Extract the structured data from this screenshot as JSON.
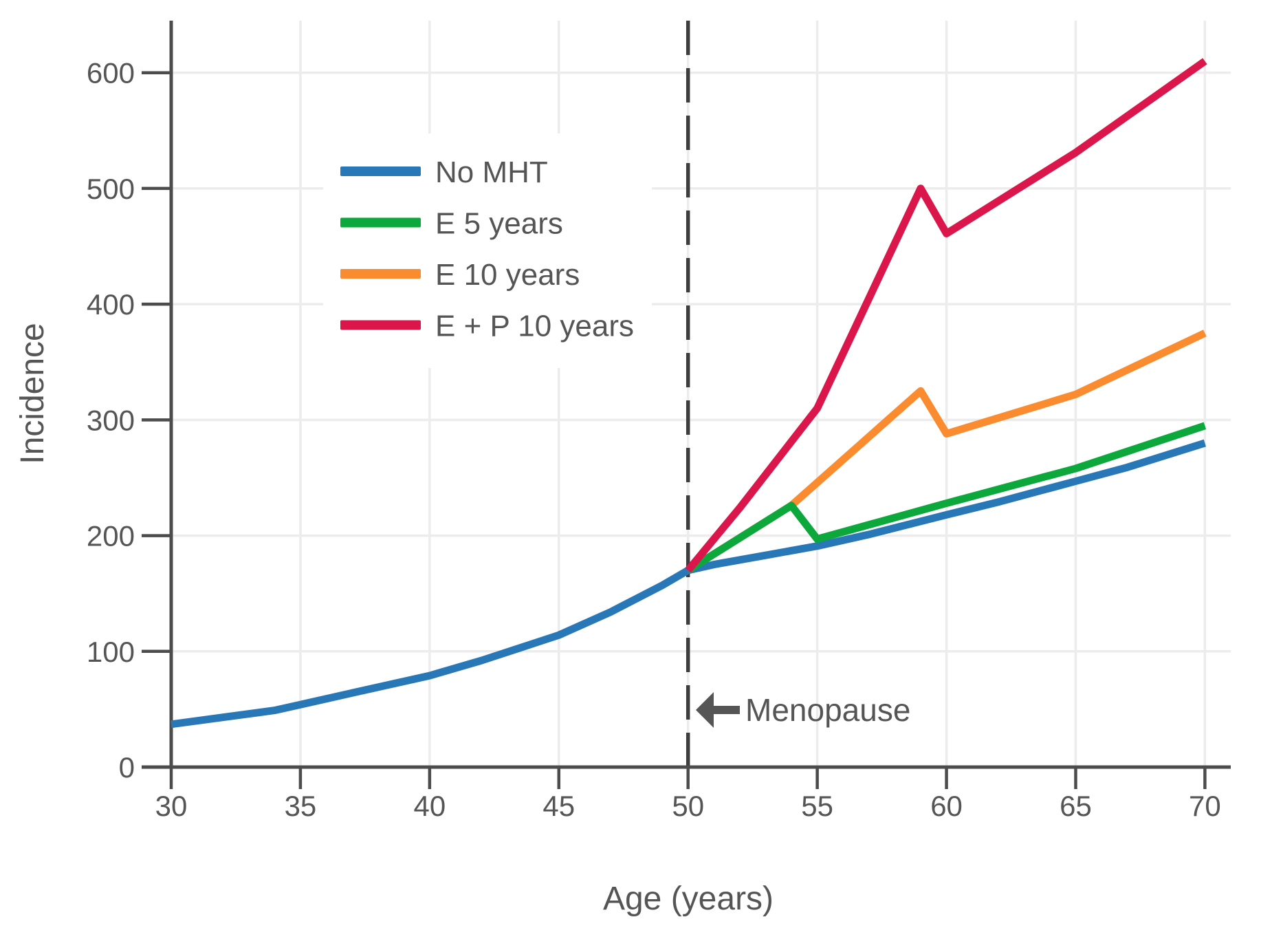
{
  "chart_data": {
    "type": "line",
    "title": "",
    "xlabel": "Age (years)",
    "ylabel": "Incidence",
    "xlim": [
      30,
      71
    ],
    "ylim": [
      0,
      645
    ],
    "x_ticks": [
      30,
      35,
      40,
      45,
      50,
      55,
      60,
      65,
      70
    ],
    "y_ticks": [
      0,
      100,
      200,
      300,
      400,
      500,
      600
    ],
    "grid": true,
    "legend_position": "upper left inside",
    "series": [
      {
        "name": "No MHT",
        "color": "#2878B8",
        "x": [
          30,
          32,
          34,
          35,
          37,
          40,
          42,
          45,
          47,
          49,
          50,
          51,
          53,
          55,
          57,
          60,
          62,
          65,
          67,
          70
        ],
        "y": [
          37,
          43,
          49,
          54,
          64,
          79,
          92,
          114,
          134,
          157,
          170,
          175,
          183,
          191,
          201,
          218,
          229,
          247,
          259,
          280
        ]
      },
      {
        "name": "E 5 years",
        "color": "#0CA83C",
        "x": [
          50,
          54,
          55,
          60,
          65,
          70
        ],
        "y": [
          170,
          226,
          197,
          228,
          258,
          295
        ]
      },
      {
        "name": "E 10 years",
        "color": "#FB8B2F",
        "x": [
          50,
          54,
          59,
          60,
          65,
          70
        ],
        "y": [
          170,
          226,
          325,
          288,
          322,
          375
        ]
      },
      {
        "name": "E + P 10 years",
        "color": "#DA164A",
        "x": [
          50,
          52,
          55,
          59,
          60,
          65,
          70
        ],
        "y": [
          170,
          224,
          310,
          500,
          461,
          531,
          610
        ]
      }
    ],
    "draw_order": [
      0,
      2,
      1,
      3
    ],
    "vline": {
      "x": 50,
      "style": "dashed",
      "color": "#3D3D3D"
    },
    "annotation": {
      "text": "Menopause",
      "arrow_direction": "left",
      "x": 50,
      "y": 49
    }
  },
  "styles": {
    "axis_color": "#4C4C4C",
    "grid_color": "#ECECEC",
    "text_color": "#555555",
    "background": "#FFFFFF"
  }
}
